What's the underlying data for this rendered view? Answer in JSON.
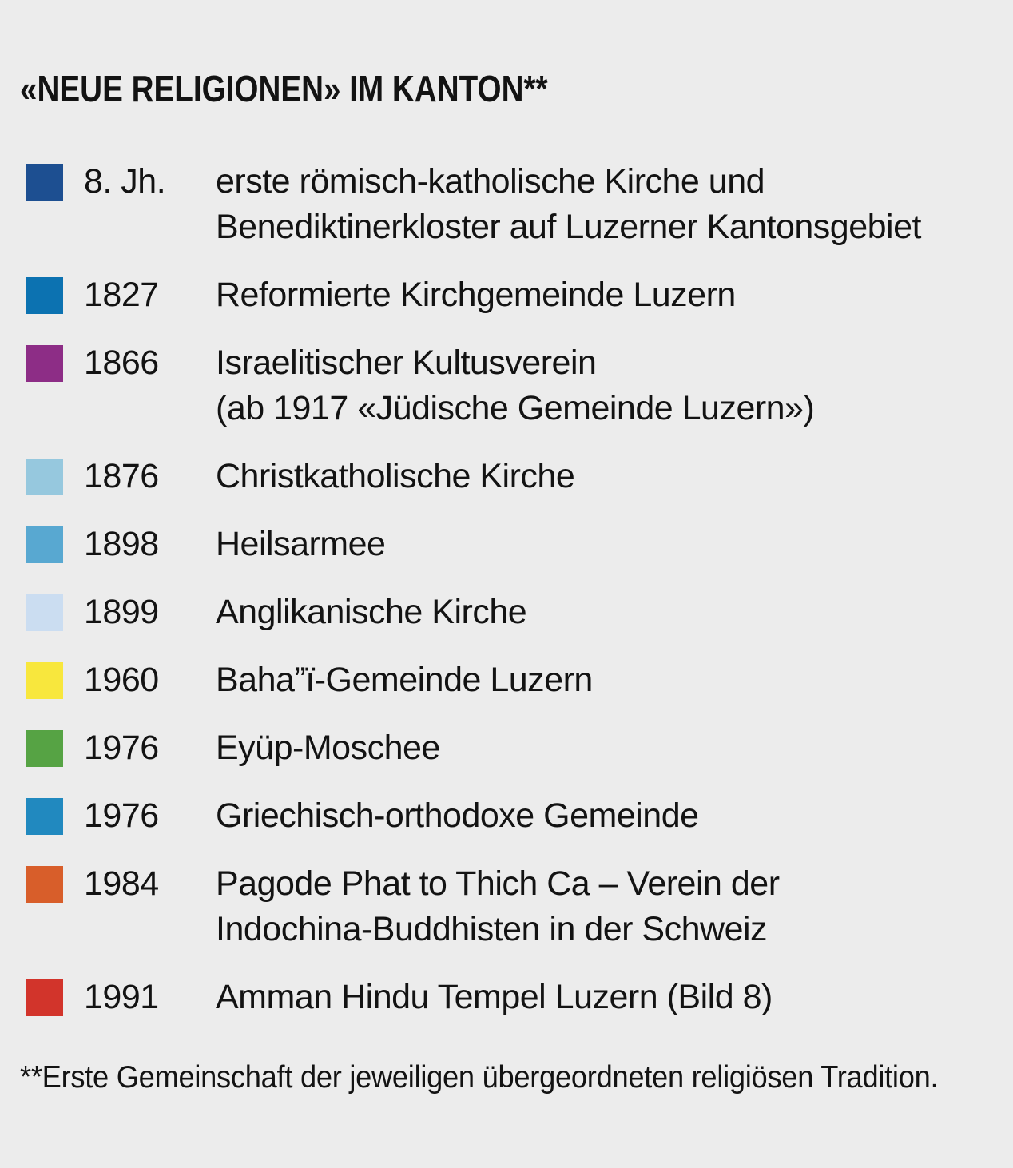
{
  "page": {
    "background_color": "#ececec",
    "text_color": "#131313"
  },
  "title": "«NEUE RELIGIONEN» IM KANTON**",
  "legend": {
    "items": [
      {
        "color": "#1d4f91",
        "date": "8. Jh.",
        "lines": [
          "erste römisch-katholische Kirche und",
          "Benediktinerkloster auf Luzerner Kantonsgebiet"
        ]
      },
      {
        "color": "#0c72b1",
        "date": "1827",
        "lines": [
          "Reformierte Kirchgemeinde Luzern"
        ]
      },
      {
        "color": "#8d2d86",
        "date": "1866",
        "lines": [
          "Israelitischer Kultusverein",
          "(ab 1917 «Jüdische Gemeinde Luzern»)"
        ]
      },
      {
        "color": "#96c8de",
        "date": "1876",
        "lines": [
          "Christkatholische Kirche"
        ]
      },
      {
        "color": "#58a8d1",
        "date": "1898",
        "lines": [
          "Heilsarmee"
        ]
      },
      {
        "color": "#cbddf1",
        "date": "1899",
        "lines": [
          "Anglikanische Kirche"
        ]
      },
      {
        "color": "#f8e73d",
        "date": "1960",
        "lines": [
          "Baha”ï-Gemeinde Luzern"
        ]
      },
      {
        "color": "#56a344",
        "date": "1976",
        "lines": [
          "Eyüp-Moschee"
        ]
      },
      {
        "color": "#2189bf",
        "date": "1976",
        "lines": [
          "Griechisch-orthodoxe Gemeinde"
        ]
      },
      {
        "color": "#d85e2a",
        "date": "1984",
        "lines": [
          "Pagode Phat to Thich Ca – Verein der",
          "Indochina-Buddhisten in der Schweiz"
        ]
      },
      {
        "color": "#d2342b",
        "date": "1991",
        "lines": [
          "Amman Hindu Tempel Luzern (Bild 8)"
        ]
      }
    ]
  },
  "footnote": "**Erste Gemeinschaft der jeweiligen übergeordneten religiösen Tradition."
}
